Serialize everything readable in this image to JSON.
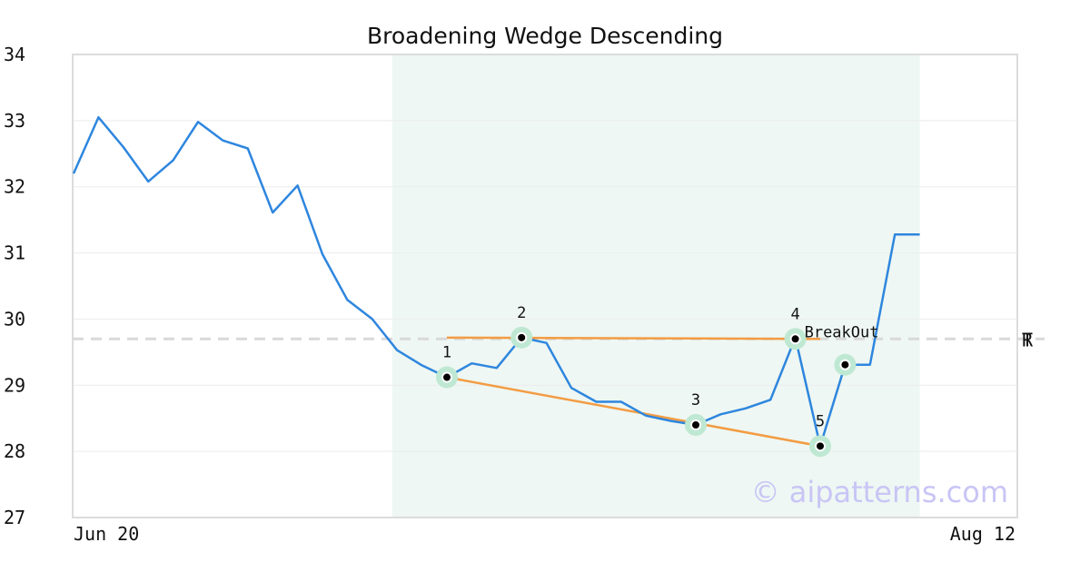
{
  "chart_data": {
    "type": "line",
    "title": "Broadening Wedge Descending",
    "xlabel": "",
    "ylabel": "",
    "ylim": [
      27,
      34
    ],
    "yticks": [
      27,
      28,
      29,
      30,
      31,
      32,
      33,
      34
    ],
    "x_tick_labels": [
      {
        "index": 0,
        "text": "Jun 20"
      },
      {
        "index": 38,
        "text": "Aug 12"
      }
    ],
    "grid": true,
    "legend": "none",
    "colors": {
      "price": "#2e86de",
      "trendline": "#f39c43",
      "shade": "#eef7f3",
      "marker_ring": "#bfe8d3",
      "ref_line": "#d9d9d9",
      "watermark": "#c9c5f5",
      "frame": "#dcdcdc"
    },
    "series": [
      {
        "values": [
          32.2,
          33.05,
          32.6,
          32.08,
          32.4,
          32.98,
          32.7,
          32.58,
          31.61,
          32.02,
          30.98,
          30.29,
          30.0,
          29.53,
          29.3,
          29.12,
          29.33,
          29.26,
          29.72,
          29.64,
          28.96,
          28.75,
          28.75,
          28.54,
          28.46,
          28.4,
          28.56,
          28.65,
          28.78,
          29.72,
          28.08,
          29.31,
          29.31,
          31.28,
          31.28
        ]
      }
    ],
    "shaded_region": {
      "start_index": 12.8,
      "end_index": 34
    },
    "trendlines": [
      {
        "x": [
          15,
          30
        ],
        "y": [
          29.72,
          29.7
        ]
      },
      {
        "x": [
          15,
          30
        ],
        "y": [
          29.12,
          28.08
        ]
      }
    ],
    "pattern_points": [
      {
        "label": "1",
        "index": 15,
        "value": 29.12
      },
      {
        "label": "2",
        "index": 18,
        "value": 29.72
      },
      {
        "label": "3",
        "index": 25,
        "value": 28.4
      },
      {
        "label": "4",
        "index": 29,
        "value": 29.7
      },
      {
        "label": "5",
        "index": 30,
        "value": 28.08
      },
      {
        "label": "",
        "index": 31,
        "value": 29.31
      }
    ],
    "annotations": [
      {
        "text": "BreakOut",
        "index": 29,
        "value": 29.7
      }
    ],
    "reference_line": {
      "value": 29.7,
      "labels": [
        "T",
        "R"
      ]
    }
  },
  "watermark": "© aipatterns.com"
}
